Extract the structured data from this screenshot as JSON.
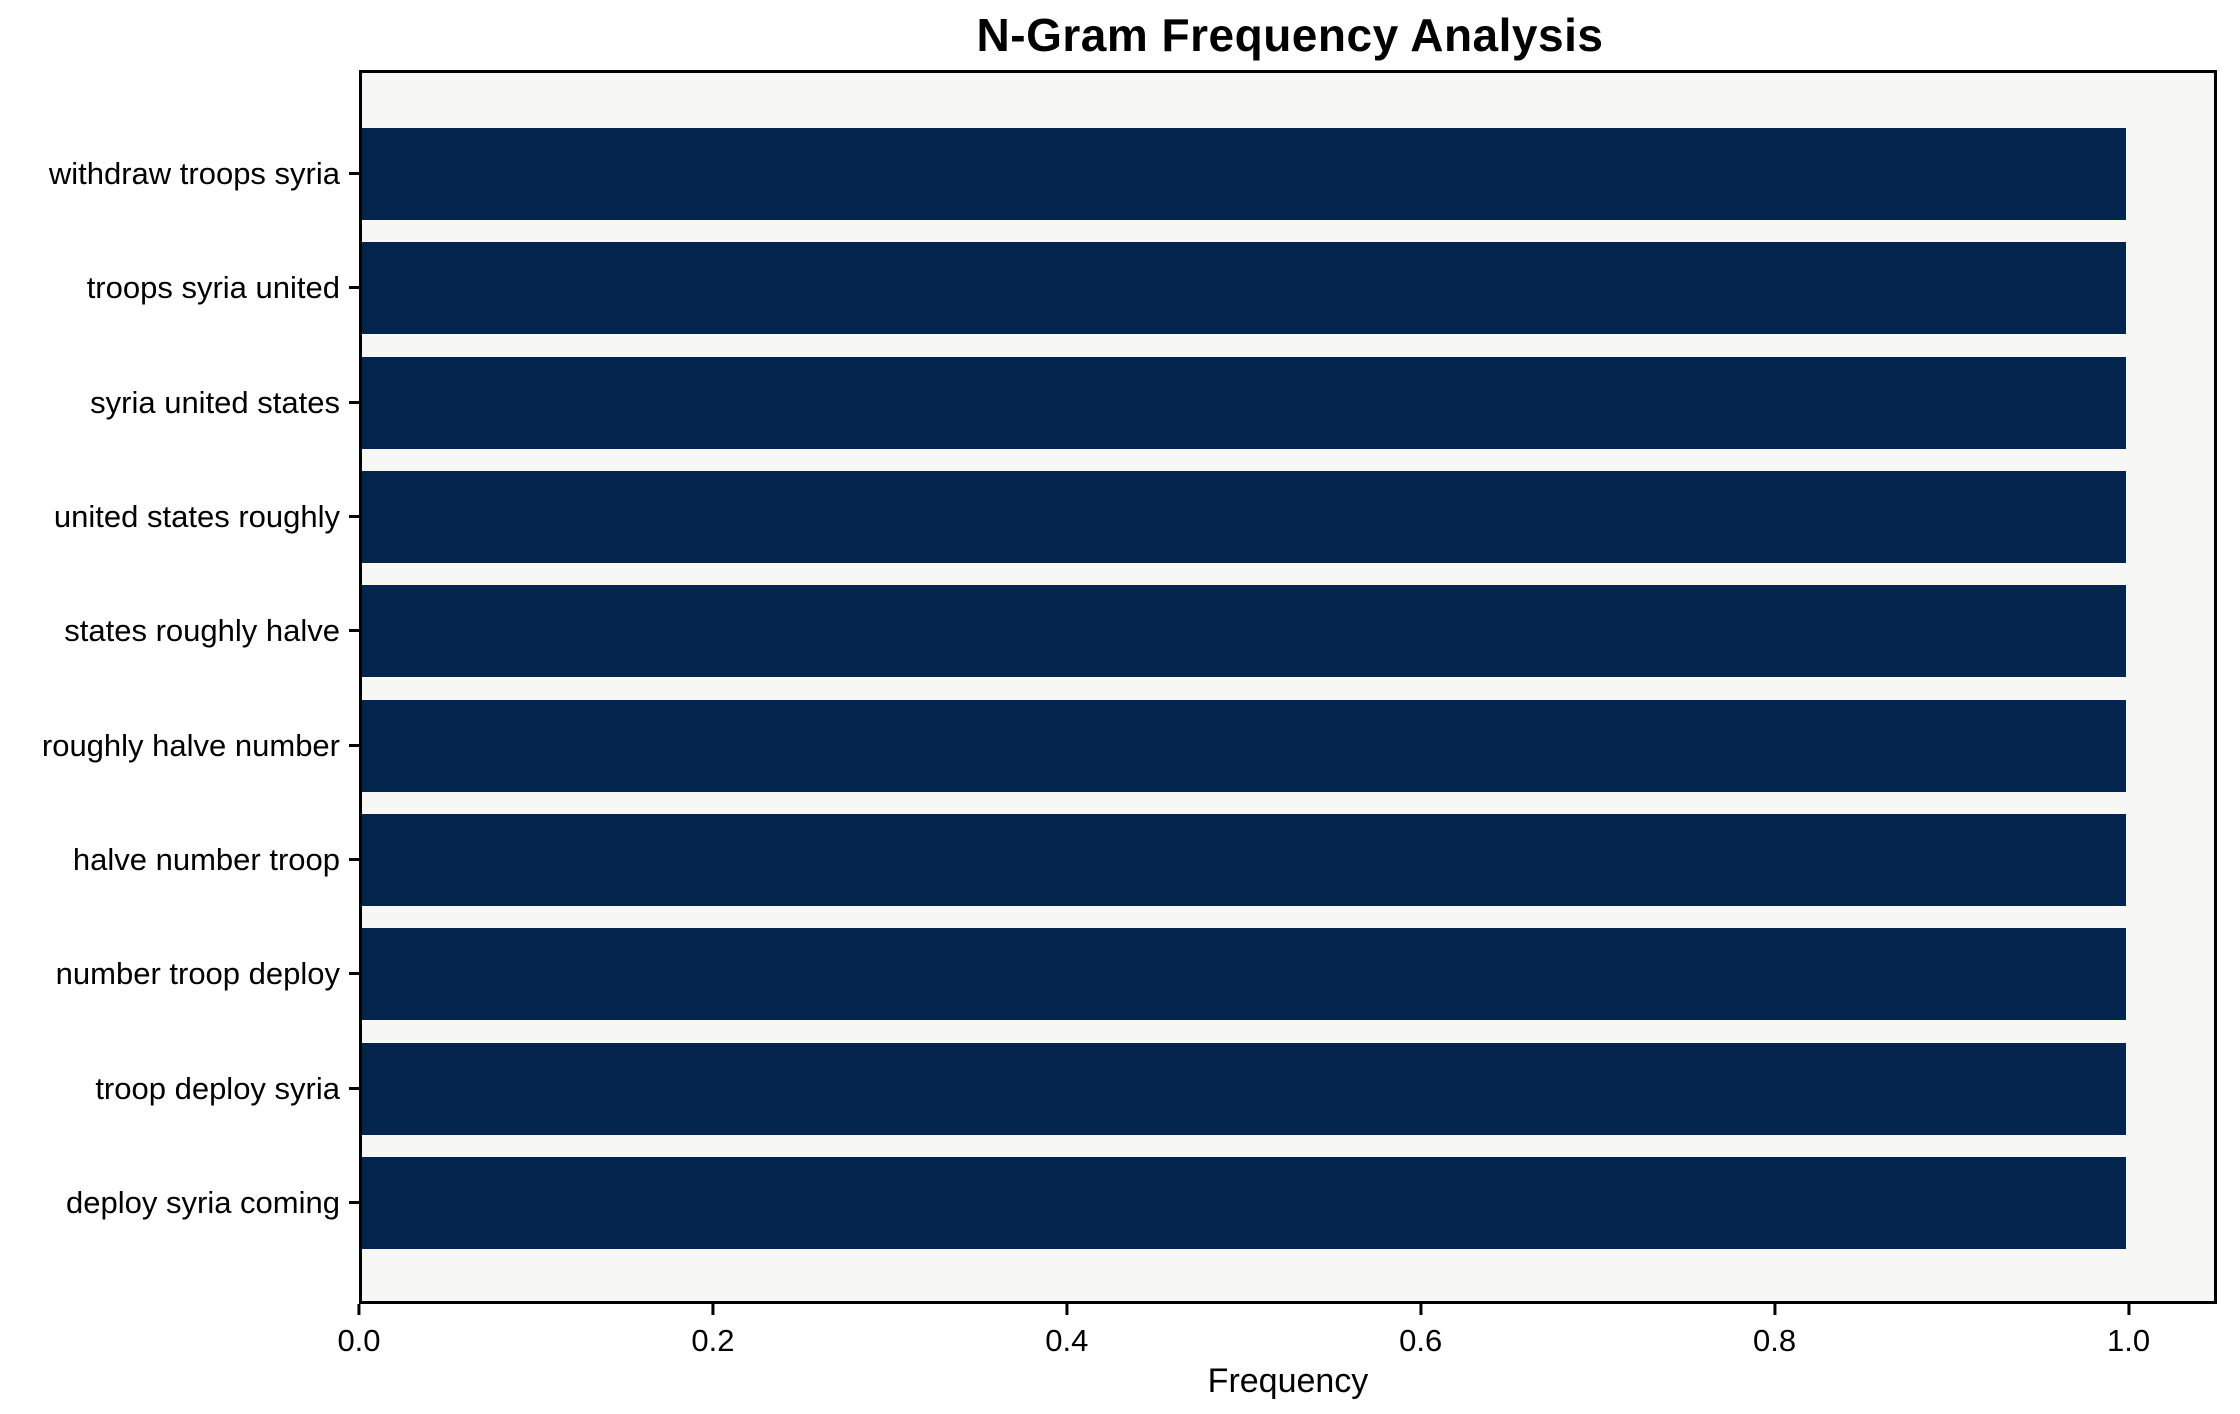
{
  "chart_data": {
    "type": "bar",
    "orientation": "horizontal",
    "title": "N-Gram Frequency Analysis",
    "xlabel": "Frequency",
    "ylabel": "",
    "categories": [
      "withdraw troops syria",
      "troops syria united",
      "syria united states",
      "united states roughly",
      "states roughly halve",
      "roughly halve number",
      "halve number troop",
      "number troop deploy",
      "troop deploy syria",
      "deploy syria coming"
    ],
    "values": [
      1.0,
      1.0,
      1.0,
      1.0,
      1.0,
      1.0,
      1.0,
      1.0,
      1.0,
      1.0
    ],
    "xlim": [
      0,
      1.05
    ],
    "xticks": [
      0.0,
      0.2,
      0.4,
      0.6,
      0.8,
      1.0
    ],
    "xtick_labels": [
      "0.0",
      "0.2",
      "0.4",
      "0.6",
      "0.8",
      "1.0"
    ],
    "grid": false,
    "legend": null,
    "colors": {
      "bar": "#03254d",
      "plot_background": "#f7f7f6",
      "figure_background": "#ffffff",
      "spine": "#000000",
      "text": "#000000"
    }
  }
}
